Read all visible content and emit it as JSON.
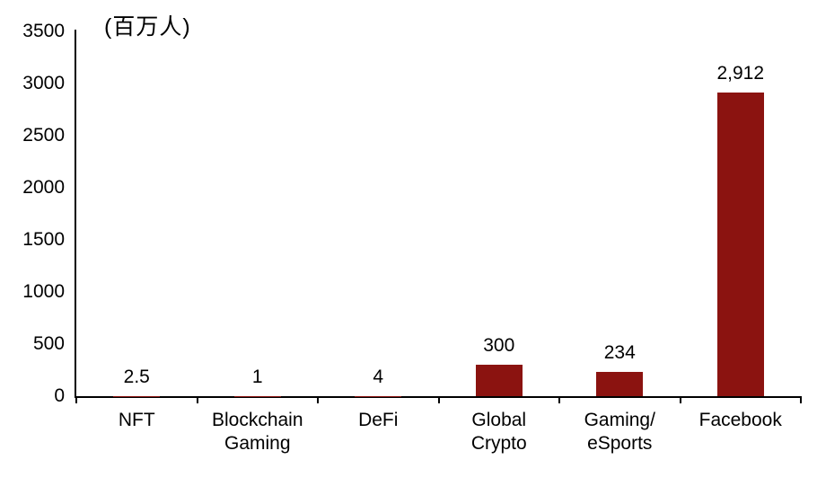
{
  "chart_data": {
    "type": "bar",
    "title": "(百万人)",
    "categories": [
      "NFT",
      "Blockchain\nGaming",
      "DeFi",
      "Global\nCrypto",
      "Gaming/\neSports",
      "Facebook"
    ],
    "values": [
      2.5,
      1,
      4,
      300,
      234,
      2912
    ],
    "value_labels": [
      "2.5",
      "1",
      "4",
      "300",
      "234",
      "2,912"
    ],
    "xlabel": "",
    "ylabel": "",
    "ylim": [
      0,
      3500
    ],
    "yticks": [
      0,
      500,
      1000,
      1500,
      2000,
      2500,
      3000,
      3500
    ],
    "ytick_labels": [
      "0",
      "500",
      "1000",
      "1500",
      "2000",
      "2500",
      "3000",
      "3500"
    ],
    "grid": false,
    "legend": false,
    "bar_color": "#8B1310",
    "axis_color": "#000000",
    "text_color": "#000000",
    "background_color": "#ffffff"
  }
}
